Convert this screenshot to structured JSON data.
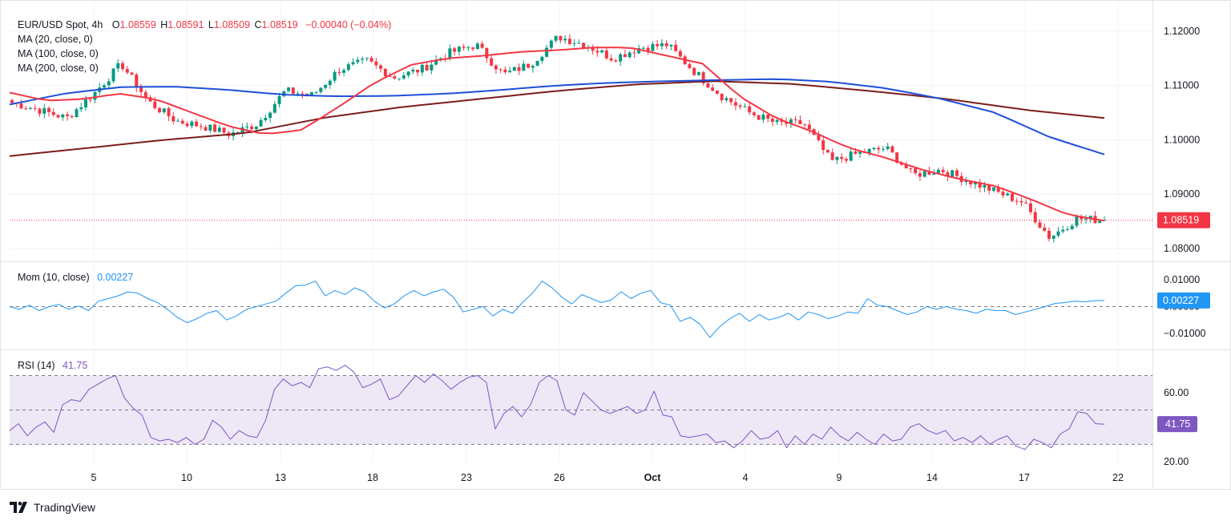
{
  "header": {
    "symbol": "EUR/USD Spot, 4h",
    "o_label": "O",
    "o_value": "1.08559",
    "h_label": "H",
    "h_value": "1.08591",
    "l_label": "L",
    "l_value": "1.08509",
    "c_label": "C",
    "c_value": "1.08519",
    "change": "−0.00040 (−0.04%)",
    "ma20": "MA (20, close, 0)",
    "ma100": "MA (100, close, 0)",
    "ma200": "MA (200, close, 0)"
  },
  "indicators": {
    "mom_label": "Mom (10, close)",
    "mom_value": "0.00227",
    "rsi_label": "RSI (14)",
    "rsi_value": "41.75"
  },
  "footer": {
    "brand": "TradingView"
  },
  "colors": {
    "up": "#089981",
    "down": "#f23645",
    "ma20": "#f23645",
    "ma100": "#1e4fd8",
    "ma200": "#7b1d1d",
    "mom": "#2196f3",
    "rsi": "#7e57c2",
    "rsi_band": "#ede7f6"
  },
  "chart_data": [
    {
      "type": "candlestick",
      "title": "EUR/USD Spot, 4h",
      "x_ticks": [
        "5",
        "10",
        "13",
        "18",
        "23",
        "26",
        "Oct",
        "4",
        "9",
        "14",
        "17",
        "22"
      ],
      "y_ticks": [
        "1.12000",
        "1.11000",
        "1.10000",
        "1.09000",
        "1.08000"
      ],
      "ylim": [
        1.0785,
        1.1225
      ],
      "last_price": "1.08519",
      "last_price_value": 1.08519,
      "anchor_closes": [
        1.1068,
        1.1055,
        1.104,
        1.1085,
        1.114,
        1.107,
        1.1035,
        1.1025,
        1.101,
        1.103,
        1.109,
        1.1082,
        1.113,
        1.1145,
        1.1115,
        1.113,
        1.116,
        1.1175,
        1.112,
        1.114,
        1.119,
        1.1175,
        1.115,
        1.117,
        1.1175,
        1.1125,
        1.108,
        1.105,
        1.103,
        1.103,
        1.096,
        1.0975,
        1.0985,
        1.0935,
        1.0945,
        1.0925,
        1.0905,
        1.0885,
        1.082,
        1.0855,
        1.0852
      ],
      "series": [
        {
          "name": "MA (20, close, 0)",
          "values": [
            1.1087,
            1.1072,
            1.1075,
            1.1085,
            1.1075,
            1.105,
            1.1025,
            1.101,
            1.1018,
            1.106,
            1.1105,
            1.1138,
            1.115,
            1.1155,
            1.1162,
            1.1165,
            1.117,
            1.117,
            1.1155,
            1.114,
            1.108,
            1.104,
            1.1015,
            1.0985,
            1.0967,
            1.0945,
            1.0928,
            1.0915,
            1.089,
            1.0862,
            1.0851
          ]
        },
        {
          "name": "MA (100, close, 0)",
          "values": [
            1.1065,
            1.1085,
            1.1097,
            1.1098,
            1.1092,
            1.1083,
            1.108,
            1.1081,
            1.1085,
            1.1092,
            1.11,
            1.1105,
            1.1108,
            1.111,
            1.1112,
            1.1107,
            1.1095,
            1.1076,
            1.105,
            1.1005,
            1.0973
          ]
        },
        {
          "name": "MA (200, close, 0)",
          "values": [
            1.097,
            1.0985,
            1.1,
            1.1012,
            1.104,
            1.106,
            1.1075,
            1.109,
            1.1102,
            1.1108,
            1.1103,
            1.109,
            1.1075,
            1.1055,
            1.104
          ]
        }
      ]
    },
    {
      "type": "line",
      "title": "Mom (10, close)",
      "y_ticks": [
        "0.01000",
        "0.00000",
        "−0.01000"
      ],
      "ylim": [
        -0.013,
        0.0145
      ],
      "series": [
        {
          "name": "Mom (10, close)",
          "values": [
            0.0,
            -0.001,
            0.0005,
            -0.0015,
            0.0,
            0.0008,
            -0.001,
            0.0002,
            -0.0015,
            0.002,
            0.003,
            0.004,
            0.0055,
            0.005,
            0.003,
            0.0015,
            -0.001,
            -0.004,
            -0.006,
            -0.0045,
            -0.0025,
            -0.0015,
            -0.005,
            -0.0035,
            -0.001,
            0.0,
            0.001,
            0.002,
            0.005,
            0.0078,
            0.008,
            0.0095,
            0.004,
            0.006,
            0.0045,
            0.007,
            0.0055,
            0.002,
            -0.0005,
            0.001,
            0.004,
            0.006,
            0.004,
            0.0055,
            0.0065,
            0.0035,
            -0.002,
            -0.001,
            0.0,
            -0.0035,
            -0.001,
            -0.0025,
            0.0015,
            0.005,
            0.0095,
            0.007,
            0.0035,
            0.001,
            0.0045,
            0.003,
            0.0015,
            0.0025,
            0.0055,
            0.003,
            0.005,
            0.006,
            0.0015,
            0.0005,
            -0.0055,
            -0.004,
            -0.0065,
            -0.0115,
            -0.0075,
            -0.0045,
            -0.0025,
            -0.0055,
            -0.003,
            -0.005,
            -0.004,
            -0.0025,
            -0.005,
            -0.002,
            -0.003,
            -0.0045,
            -0.0035,
            -0.002,
            -0.0025,
            0.003,
            0.0005,
            0.0,
            -0.0015,
            -0.003,
            -0.002,
            0.0,
            -0.001,
            0.0,
            -0.001,
            -0.0015,
            -0.0025,
            -0.001,
            -0.0015,
            -0.0015,
            -0.003,
            -0.002,
            -0.001,
            0.0,
            0.0012,
            0.0015,
            0.002,
            0.0018,
            0.0022,
            0.00227
          ]
        }
      ]
    },
    {
      "type": "line",
      "title": "RSI (14)",
      "y_ticks": [
        "60.00",
        "20.00"
      ],
      "ylim": [
        19,
        80.5
      ],
      "bands": [
        70,
        50,
        30
      ],
      "series": [
        {
          "name": "RSI (14)",
          "values": [
            38,
            42,
            35,
            40,
            43,
            37,
            53,
            56,
            55,
            62,
            65,
            68,
            70,
            57,
            51,
            47,
            34,
            32,
            33,
            31,
            34,
            30,
            33,
            44,
            40,
            33,
            38,
            35,
            34,
            44,
            62,
            68,
            64,
            66,
            63,
            74,
            75,
            73,
            76,
            72,
            63,
            65,
            68,
            56,
            58,
            64,
            70,
            66,
            71,
            67,
            62,
            66,
            69,
            70,
            66,
            39,
            48,
            52,
            46,
            53,
            66,
            70,
            67,
            50,
            47,
            60,
            55,
            50,
            48,
            50,
            52,
            48,
            50,
            61,
            47,
            46,
            35,
            34,
            35,
            36,
            31,
            32,
            28,
            32,
            38,
            33,
            34,
            38,
            28,
            35,
            30,
            36,
            33,
            40,
            35,
            32,
            37,
            33,
            30,
            36,
            32,
            33,
            40,
            42,
            38,
            36,
            38,
            32,
            34,
            31,
            35,
            30,
            33,
            35,
            29,
            27,
            33,
            31,
            28,
            36,
            39,
            49,
            48,
            42,
            41.75
          ]
        }
      ]
    }
  ]
}
